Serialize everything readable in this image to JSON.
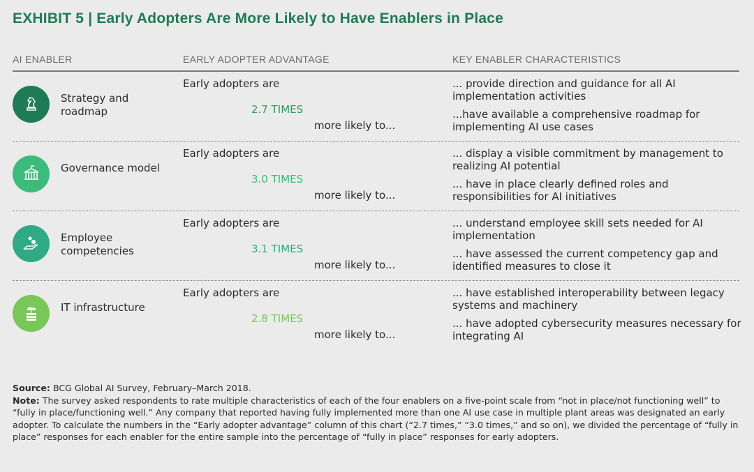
{
  "title": "EXHIBIT 5 | Early Adopters Are More Likely to Have Enablers in Place",
  "headers": {
    "enabler": "AI ENABLER",
    "advantage": "EARLY ADOPTER ADVANTAGE",
    "characteristics": "KEY ENABLER CHARACTERISTICS"
  },
  "rows": [
    {
      "label": "Strategy and roadmap",
      "icon": "chess-knight-icon",
      "color": "#1f7a56",
      "prefix": "Early adopters are",
      "times": "2.7 TIMES",
      "times_color": "#2f9a62",
      "suffix": "more likely to...",
      "c1": "... provide direction and guidance for all AI implementation activities",
      "c2": "...have available a comprehensive roadmap for implementing AI use cases"
    },
    {
      "label": "Governance model",
      "icon": "government-building-icon",
      "color": "#3dbb7c",
      "prefix": "Early adopters are",
      "times": "3.0 TIMES",
      "times_color": "#3dbb7c",
      "suffix": "more likely to...",
      "c1": "... display a visible commitment by management to realizing AI potential",
      "c2": "... have in place clearly defined roles and responsibilities for AI initiatives"
    },
    {
      "label": "Employee competencies",
      "icon": "hand-with-coins-icon",
      "color": "#2faa85",
      "prefix": "Early adopters are",
      "times": "3.1 TIMES",
      "times_color": "#2faa85",
      "suffix": "more likely to...",
      "c1": "... understand employee skill sets needed for AI implementation",
      "c2": "... have assessed the current competency gap and identified measures to close it"
    },
    {
      "label": "IT infrastructure",
      "icon": "cloud-server-icon",
      "color": "#79c659",
      "prefix": "Early adopters are",
      "times": "2.8 TIMES",
      "times_color": "#79c659",
      "suffix": "more likely to...",
      "c1": "... have established interoperability between legacy systems and machinery",
      "c2": "... have adopted cybersecurity measures necessary for integrating AI"
    }
  ],
  "source_label": "Source:",
  "source": " BCG Global AI Survey, February–March 2018.",
  "note_label": "Note:",
  "note": " The survey asked respondents to rate multiple characteristics of each of the four enablers on a five-point scale from “not in place/not functioning well” to “fully in place/functioning well.” Any company that reported having fully implemented more than one AI use case in multiple plant areas was designated an early adopter. To calculate the numbers in the “Early adopter advantage” column of this chart (“2.7 times,” “3.0 times,” and so on), we divided the percentage of “fully in place” responses for each enabler for the entire sample into the percentage of “fully in place” responses for early adopters.",
  "chart_data": {
    "type": "table",
    "title": "Early Adopters Are More Likely to Have Enablers in Place",
    "categories": [
      "Strategy and roadmap",
      "Governance model",
      "Employee competencies",
      "IT infrastructure"
    ],
    "values": [
      2.7,
      3.0,
      3.1,
      2.8
    ],
    "unit": "times more likely"
  }
}
